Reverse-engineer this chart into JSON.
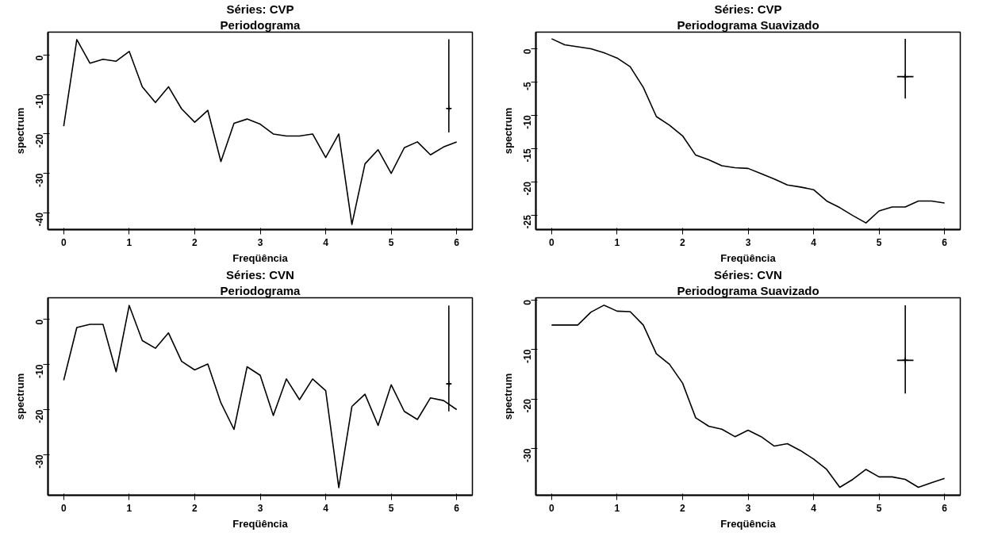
{
  "chart_data": [
    {
      "type": "line",
      "title": "Séries: CVP",
      "subtitle": "Periodograma",
      "xlabel": "Freqüência",
      "ylabel": "spectrum",
      "xlim": [
        -0.24,
        6.24
      ],
      "ylim": [
        -44.3,
        5.9
      ],
      "xticks": [
        0,
        1,
        2,
        3,
        4,
        5,
        6
      ],
      "yticks": [
        0,
        -10,
        -20,
        -30,
        -40
      ],
      "grid": false,
      "line_style": "solid",
      "series": [
        {
          "color": "#000000",
          "x": [
            0,
            0.2,
            0.4,
            0.6,
            0.8,
            1.0,
            1.2,
            1.4,
            1.6,
            1.8,
            2.0,
            2.2,
            2.4,
            2.6,
            2.8,
            3.0,
            3.2,
            3.4,
            3.6,
            3.8,
            4.0,
            4.2,
            4.4,
            4.6,
            4.8,
            5.0,
            5.2,
            5.4,
            5.6,
            5.8,
            6.0
          ],
          "values": [
            -18,
            4,
            -2,
            -1,
            -1.5,
            1,
            -8,
            -12,
            -8,
            -13.6,
            -17,
            -14,
            -27,
            -17.3,
            -16.2,
            -17.5,
            -20,
            -20.5,
            -20.5,
            -20,
            -26,
            -20,
            -43,
            -27.6,
            -24,
            -30,
            -23.5,
            -22,
            -25.3,
            -23.3,
            -22
          ]
        },
        {
          "type": "scatter",
          "marker": "cross",
          "color": "#000000",
          "x": [
            5.88
          ],
          "values": [
            -13.5
          ],
          "errors": [
            [
              -19.6,
              4.1
            ]
          ],
          "xerrors": [
            0.03
          ]
        }
      ]
    },
    {
      "type": "line",
      "title": "Séries: CVP",
      "subtitle": "Periodograma Suavizado",
      "xlabel": "Freqüência",
      "ylabel": "spectrum",
      "xlim": [
        -0.24,
        6.24
      ],
      "ylim": [
        -27.2,
        2.5
      ],
      "xticks": [
        0,
        1,
        2,
        3,
        4,
        5,
        6
      ],
      "yticks": [
        0,
        -5,
        -10,
        -15,
        -20,
        -25
      ],
      "grid": false,
      "line_style": "solid",
      "series": [
        {
          "color": "#000000",
          "x": [
            0,
            0.2,
            0.4,
            0.6,
            0.8,
            1.0,
            1.2,
            1.4,
            1.6,
            1.8,
            2.0,
            2.2,
            2.4,
            2.6,
            2.8,
            3.0,
            3.2,
            3.4,
            3.6,
            3.8,
            4.0,
            4.2,
            4.4,
            4.6,
            4.8,
            5.0,
            5.2,
            5.4,
            5.6,
            5.8,
            6.0
          ],
          "values": [
            1.5,
            0.6,
            0.3,
            0,
            -0.6,
            -1.4,
            -2.7,
            -5.8,
            -10.2,
            -11.5,
            -13.1,
            -16,
            -16.7,
            -17.6,
            -17.9,
            -18,
            -18.8,
            -19.6,
            -20.5,
            -20.8,
            -21.2,
            -22.9,
            -23.9,
            -25.1,
            -26.2,
            -24.4,
            -23.8,
            -23.8,
            -22.9,
            -22.9,
            -23.2
          ]
        },
        {
          "type": "scatter",
          "marker": "cross",
          "color": "#000000",
          "x": [
            5.4
          ],
          "values": [
            -4.2
          ],
          "errors": [
            [
              -7.5,
              1.5
            ]
          ],
          "xerrors": [
            0.125
          ]
        }
      ]
    },
    {
      "type": "line",
      "title": "Séries: CVN",
      "subtitle": "Periodograma",
      "xlabel": "Freqüência",
      "ylabel": "spectrum",
      "xlim": [
        -0.24,
        6.24
      ],
      "ylim": [
        -39,
        4.8
      ],
      "xticks": [
        0,
        1,
        2,
        3,
        4,
        5,
        6
      ],
      "yticks": [
        0,
        -10,
        -20,
        -30
      ],
      "grid": false,
      "line_style": "solid",
      "series": [
        {
          "color": "#000000",
          "x": [
            0,
            0.2,
            0.4,
            0.6,
            0.8,
            1.0,
            1.2,
            1.4,
            1.6,
            1.8,
            2.0,
            2.2,
            2.4,
            2.6,
            2.8,
            3.0,
            3.2,
            3.4,
            3.6,
            3.8,
            4.0,
            4.2,
            4.4,
            4.6,
            4.8,
            5.0,
            5.2,
            5.4,
            5.6,
            5.8,
            6.0
          ],
          "values": [
            -13.5,
            -1.8,
            -1.1,
            -1.1,
            -11.6,
            3.1,
            -4.7,
            -6.4,
            -3,
            -9.3,
            -11.2,
            -9.9,
            -18.5,
            -24.4,
            -10.5,
            -12.4,
            -21.3,
            -13.2,
            -17.8,
            -13.2,
            -15.8,
            -37.3,
            -19.3,
            -16.6,
            -23.5,
            -14.5,
            -20.4,
            -22.2,
            -17.4,
            -18,
            -20
          ]
        },
        {
          "type": "scatter",
          "marker": "cross",
          "color": "#000000",
          "x": [
            5.88
          ],
          "values": [
            -14.3
          ],
          "errors": [
            [
              -20.4,
              3.1
            ]
          ],
          "xerrors": [
            0.03
          ]
        }
      ]
    },
    {
      "type": "line",
      "title": "Séries: CVN",
      "subtitle": "Periodograma Suavizado",
      "xlabel": "Freqüência",
      "ylabel": "spectrum",
      "xlim": [
        -0.24,
        6.24
      ],
      "ylim": [
        -39.4,
        0.4
      ],
      "xticks": [
        0,
        1,
        2,
        3,
        4,
        5,
        6
      ],
      "yticks": [
        0,
        -10,
        -20,
        -30
      ],
      "grid": false,
      "line_style": "solid",
      "series": [
        {
          "color": "#000000",
          "x": [
            0,
            0.2,
            0.4,
            0.6,
            0.8,
            1.0,
            1.2,
            1.4,
            1.6,
            1.8,
            2.0,
            2.2,
            2.4,
            2.6,
            2.8,
            3.0,
            3.2,
            3.4,
            3.6,
            3.8,
            4.0,
            4.2,
            4.4,
            4.6,
            4.8,
            5.0,
            5.2,
            5.4,
            5.6,
            5.8,
            6.0
          ],
          "values": [
            -5.1,
            -5.1,
            -5.1,
            -2.5,
            -1.1,
            -2.3,
            -2.4,
            -5.1,
            -10.9,
            -13,
            -16.8,
            -23.8,
            -25.5,
            -26.1,
            -27.6,
            -26.3,
            -27.6,
            -29.5,
            -29,
            -30.4,
            -32.1,
            -34.2,
            -37.8,
            -36.2,
            -34.2,
            -35.7,
            -35.7,
            -36.2,
            -37.8,
            -36.9,
            -36
          ]
        },
        {
          "type": "scatter",
          "marker": "cross",
          "color": "#000000",
          "x": [
            5.4
          ],
          "values": [
            -12.2
          ],
          "errors": [
            [
              -18.9,
              -1.1
            ]
          ],
          "xerrors": [
            0.125
          ]
        }
      ]
    }
  ]
}
